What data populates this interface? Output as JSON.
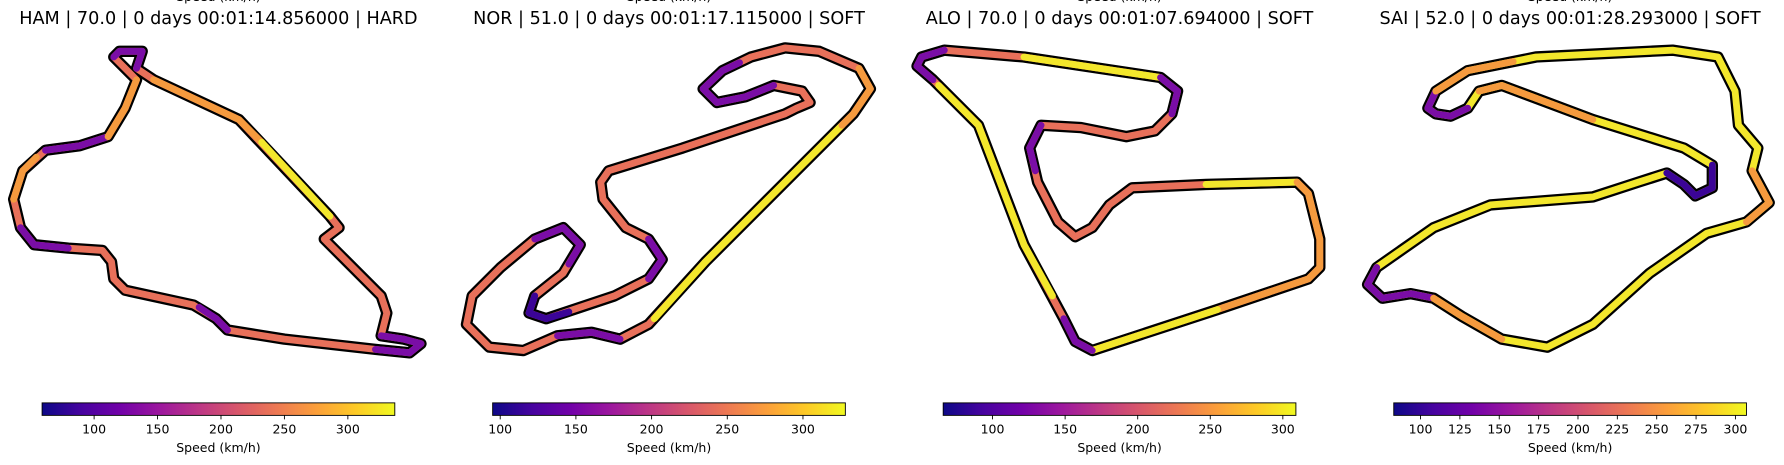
{
  "chart_data": [
    {
      "type": "colorbar",
      "title": "HAM | 70.0 | 0 days 00:01:14.856000 | HARD",
      "label": "Speed (km/h)",
      "colormap": "plasma",
      "clim": [
        59,
        337
      ],
      "ticks": [
        100,
        150,
        200,
        250,
        300
      ]
    },
    {
      "type": "colorbar",
      "title": "NOR | 51.0 | 0 days 00:01:17.115000 | SOFT",
      "label": "Speed (km/h)",
      "colormap": "plasma",
      "clim": [
        95,
        328
      ],
      "ticks": [
        100,
        150,
        200,
        250,
        300
      ]
    },
    {
      "type": "colorbar",
      "title": "ALO | 70.0 | 0 days 00:01:07.694000 | SOFT",
      "label": "Speed (km/h)",
      "colormap": "plasma",
      "clim": [
        66,
        309
      ],
      "ticks": [
        100,
        150,
        200,
        250,
        300
      ]
    },
    {
      "type": "colorbar",
      "title": "SAI | 52.0 | 0 days 00:01:28.293000 | SOFT",
      "label": "Speed (km/h)",
      "colormap": "plasma",
      "clim": [
        83,
        307
      ],
      "ticks": [
        100,
        125,
        150,
        175,
        200,
        225,
        250,
        275,
        300
      ]
    }
  ]
}
